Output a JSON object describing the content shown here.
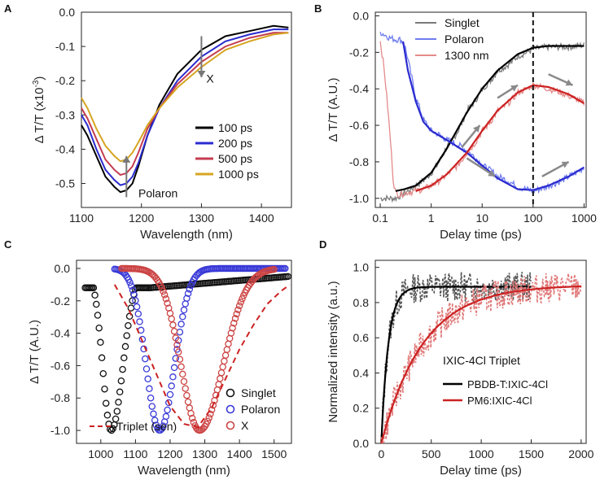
{
  "chart_data": [
    {
      "panel": "A",
      "type": "line",
      "xlabel": "Wavelength (nm)",
      "ylabel": "Δ T/T (x10",
      "ylabel_exp": "-3",
      "ylabel_close": ")",
      "xlim": [
        1100,
        1450
      ],
      "ylim": [
        -0.57,
        0.0
      ],
      "xticks": [
        1100,
        1200,
        1300,
        1400
      ],
      "yticks": [
        0.0,
        -0.1,
        -0.2,
        -0.3,
        -0.4,
        -0.5
      ],
      "ytick_labels": [
        "0.0",
        "-0.1",
        "-0.2",
        "-0.3",
        "-0.4",
        "-0.5"
      ],
      "legend_position": "lower-right",
      "annotations": [
        "Polaron",
        "X"
      ],
      "series": [
        {
          "name": "100 ps",
          "color": "#000000",
          "x": [
            1100,
            1110,
            1125,
            1140,
            1155,
            1165,
            1175,
            1185,
            1195,
            1210,
            1230,
            1260,
            1300,
            1340,
            1380,
            1420,
            1445
          ],
          "y": [
            -0.33,
            -0.36,
            -0.42,
            -0.48,
            -0.51,
            -0.525,
            -0.52,
            -0.5,
            -0.45,
            -0.36,
            -0.27,
            -0.18,
            -0.11,
            -0.07,
            -0.055,
            -0.04,
            -0.045
          ]
        },
        {
          "name": "200 ps",
          "color": "#2b2bcf",
          "x": [
            1100,
            1110,
            1125,
            1140,
            1155,
            1165,
            1175,
            1185,
            1195,
            1210,
            1230,
            1260,
            1300,
            1340,
            1380,
            1420,
            1445
          ],
          "y": [
            -0.3,
            -0.33,
            -0.4,
            -0.46,
            -0.49,
            -0.505,
            -0.5,
            -0.48,
            -0.44,
            -0.36,
            -0.28,
            -0.2,
            -0.13,
            -0.085,
            -0.065,
            -0.05,
            -0.05
          ]
        },
        {
          "name": "500 ps",
          "color": "#c43c50",
          "x": [
            1100,
            1110,
            1125,
            1140,
            1155,
            1165,
            1175,
            1185,
            1195,
            1210,
            1230,
            1260,
            1300,
            1340,
            1380,
            1420,
            1445
          ],
          "y": [
            -0.28,
            -0.31,
            -0.37,
            -0.43,
            -0.46,
            -0.475,
            -0.47,
            -0.45,
            -0.41,
            -0.34,
            -0.28,
            -0.21,
            -0.145,
            -0.1,
            -0.075,
            -0.06,
            -0.06
          ]
        },
        {
          "name": "1000 ps",
          "color": "#d6a521",
          "x": [
            1100,
            1110,
            1125,
            1140,
            1155,
            1165,
            1175,
            1185,
            1195,
            1210,
            1230,
            1260,
            1300,
            1340,
            1380,
            1420,
            1445
          ],
          "y": [
            -0.25,
            -0.28,
            -0.34,
            -0.39,
            -0.42,
            -0.435,
            -0.43,
            -0.41,
            -0.38,
            -0.33,
            -0.28,
            -0.22,
            -0.16,
            -0.11,
            -0.085,
            -0.065,
            -0.06
          ]
        }
      ]
    },
    {
      "panel": "B",
      "type": "line",
      "xscale": "log",
      "xlabel": "Delay time (ps)",
      "ylabel": "Δ T/T (A.U.)",
      "xlim": [
        0.08,
        1100
      ],
      "ylim": [
        -1.05,
        0.02
      ],
      "xticks": [
        0.1,
        1,
        10,
        100,
        1000
      ],
      "xtick_labels": [
        "0.1",
        "1",
        "10",
        "100",
        "1000"
      ],
      "yticks": [
        0.0,
        -0.2,
        -0.4,
        -0.6,
        -0.8,
        -1.0
      ],
      "ytick_labels": [
        "0.0",
        "-0.2",
        "-0.4",
        "-0.6",
        "-0.8",
        "-1.0"
      ],
      "vline_x": 100,
      "legend_position": "top-left",
      "series": [
        {
          "name": "Singlet",
          "color": "#7a7a7a",
          "role": "data",
          "x": [
            0.1,
            0.15,
            0.2,
            0.3,
            0.5,
            1,
            2,
            5,
            10,
            20,
            50,
            100,
            200,
            500,
            1000
          ],
          "y": [
            -1.0,
            -1.0,
            -1.0,
            -0.97,
            -0.93,
            -0.86,
            -0.72,
            -0.52,
            -0.4,
            -0.3,
            -0.22,
            -0.18,
            -0.17,
            -0.17,
            -0.16
          ]
        },
        {
          "name": "Polaron",
          "color": "#6f7cf0",
          "role": "data",
          "x": [
            0.1,
            0.15,
            0.2,
            0.25,
            0.3,
            0.4,
            0.5,
            0.7,
            1,
            2,
            5,
            10,
            20,
            50,
            100,
            200,
            500,
            1000
          ],
          "y": [
            -0.09,
            -0.12,
            -0.13,
            -0.13,
            -0.16,
            -0.32,
            -0.45,
            -0.57,
            -0.63,
            -0.68,
            -0.74,
            -0.82,
            -0.88,
            -0.94,
            -0.96,
            -0.93,
            -0.88,
            -0.83
          ]
        },
        {
          "name": "1300 nm",
          "color": "#e58a8a",
          "role": "data",
          "x": [
            0.1,
            0.12,
            0.15,
            0.18,
            0.2,
            0.25,
            0.3,
            0.5,
            1,
            2,
            5,
            10,
            20,
            50,
            100,
            200,
            500,
            1000
          ],
          "y": [
            -0.14,
            -0.3,
            -0.6,
            -0.9,
            -0.97,
            -0.98,
            -0.97,
            -0.96,
            -0.93,
            -0.87,
            -0.75,
            -0.63,
            -0.52,
            -0.42,
            -0.38,
            -0.4,
            -0.44,
            -0.48
          ]
        },
        {
          "name": "Singlet fit",
          "color": "#000000",
          "role": "fit",
          "x": [
            0.2,
            0.3,
            0.5,
            1,
            2,
            5,
            10,
            20,
            50,
            100,
            200,
            500,
            1000
          ],
          "y": [
            -0.96,
            -0.95,
            -0.93,
            -0.86,
            -0.73,
            -0.53,
            -0.4,
            -0.3,
            -0.21,
            -0.175,
            -0.165,
            -0.165,
            -0.165
          ]
        },
        {
          "name": "Polaron fit",
          "color": "#2b2bcf",
          "role": "fit",
          "x": [
            0.28,
            0.35,
            0.5,
            0.7,
            1,
            2,
            5,
            10,
            20,
            50,
            100,
            200,
            500,
            1000
          ],
          "y": [
            -0.14,
            -0.3,
            -0.47,
            -0.58,
            -0.63,
            -0.68,
            -0.75,
            -0.82,
            -0.89,
            -0.95,
            -0.955,
            -0.93,
            -0.88,
            -0.83
          ]
        },
        {
          "name": "1300 nm fit",
          "color": "#cc2222",
          "role": "fit",
          "x": [
            0.5,
            1,
            2,
            5,
            10,
            20,
            50,
            100,
            200,
            500,
            1000
          ],
          "y": [
            -0.96,
            -0.93,
            -0.87,
            -0.75,
            -0.63,
            -0.52,
            -0.42,
            -0.38,
            -0.39,
            -0.43,
            -0.48
          ]
        }
      ]
    },
    {
      "panel": "C",
      "type": "scatter",
      "xlabel": "Wavelength (nm)",
      "ylabel": "Δ T/T (A.U.)",
      "xlim": [
        930,
        1550
      ],
      "ylim": [
        -1.08,
        0.05
      ],
      "xticks": [
        1000,
        1100,
        1200,
        1300,
        1400,
        1500
      ],
      "yticks": [
        0.0,
        -0.2,
        -0.4,
        -0.6,
        -0.8,
        -1.0
      ],
      "ytick_labels": [
        "0.0",
        "-0.2",
        "-0.4",
        "-0.6",
        "-0.8",
        "-1.0"
      ],
      "legend_position": "lower-right",
      "series": [
        {
          "name": "Singlet",
          "color": "#111111",
          "marker": "open-circle",
          "style": "gaussian",
          "center": 1030,
          "width_left": 35,
          "width_right": 48,
          "x_start": 955,
          "x_end": 1140,
          "tail_y": [
            -0.12,
            -0.05
          ],
          "tail_x": [
            1140,
            1540
          ]
        },
        {
          "name": "Polaron",
          "color": "#3a3ad8",
          "marker": "open-circle",
          "style": "gaussian",
          "center": 1170,
          "width_left": 55,
          "width_right": 60,
          "x_start": 1040,
          "x_end": 1535
        },
        {
          "name": "X",
          "color": "#cc4444",
          "marker": "open-circle",
          "style": "gaussian",
          "center": 1285,
          "width_left": 75,
          "width_right": 95,
          "x_start": 1060,
          "x_end": 1500
        },
        {
          "name": "Triplet (sen)",
          "color": "#cc2222",
          "marker": "dashed-line",
          "x": [
            1040,
            1080,
            1120,
            1160,
            1200,
            1240,
            1280,
            1320,
            1360,
            1400,
            1440,
            1480,
            1520,
            1545
          ],
          "y": [
            -0.1,
            -0.25,
            -0.45,
            -0.65,
            -0.85,
            -0.96,
            -0.98,
            -0.86,
            -0.68,
            -0.5,
            -0.35,
            -0.22,
            -0.14,
            -0.1
          ]
        }
      ]
    },
    {
      "panel": "D",
      "type": "line",
      "xlabel": "Delay time (ps)",
      "ylabel": "Normalized intensity (a.u.)",
      "xlim": [
        -60,
        2050
      ],
      "ylim": [
        0.0,
        1.04
      ],
      "xticks": [
        0,
        500,
        1000,
        1500,
        2000
      ],
      "yticks": [
        0.0,
        0.2,
        0.4,
        0.6,
        0.8,
        1.0
      ],
      "ytick_labels": [
        "0.0",
        "0.2",
        "0.4",
        "0.6",
        "0.8",
        "1.0"
      ],
      "legend_title": "IXIC-4Cl Triplet",
      "legend_position": "center-right",
      "series": [
        {
          "name": "PBDB-T:IXIC-4Cl",
          "color": "#000000",
          "plateau": 0.89,
          "tau": 70,
          "x_end": 1500,
          "data_color": "#555555"
        },
        {
          "name": "PM6:IXIC-4Cl",
          "color": "#cc2222",
          "plateau": 0.9,
          "tau": 420,
          "x_end": 2000,
          "data_color": "#e07878"
        }
      ]
    }
  ]
}
